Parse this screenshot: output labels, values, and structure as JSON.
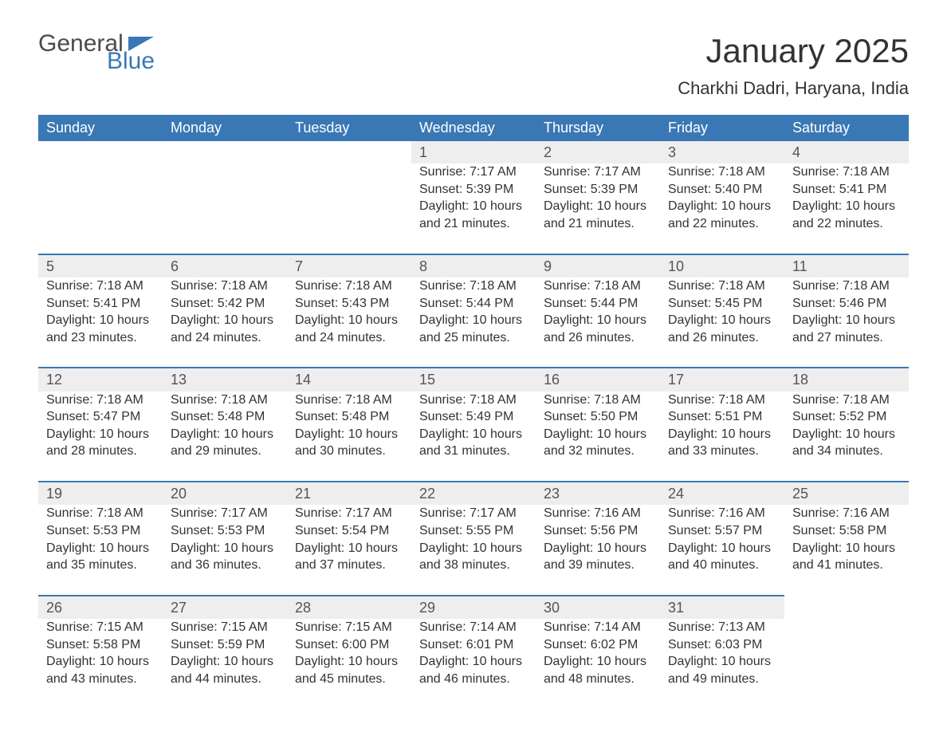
{
  "brand": {
    "word1": "General",
    "word2": "Blue",
    "accent_color": "#3a78b5"
  },
  "title": "January 2025",
  "location": "Charkhi Dadri, Haryana, India",
  "weekday_labels": [
    "Sunday",
    "Monday",
    "Tuesday",
    "Wednesday",
    "Thursday",
    "Friday",
    "Saturday"
  ],
  "colors": {
    "header_bg": "#3a78b5",
    "header_text": "#ffffff",
    "daynum_bg": "#eeeeee",
    "daynum_border": "#3a78b5",
    "body_text": "#333333",
    "background": "#ffffff"
  },
  "typography": {
    "title_fontsize": 42,
    "location_fontsize": 22,
    "weekday_fontsize": 18,
    "daynum_fontsize": 18,
    "cell_fontsize": 16
  },
  "labels": {
    "sunrise": "Sunrise",
    "sunset": "Sunset",
    "daylight": "Daylight"
  },
  "start_weekday_index": 3,
  "days": [
    {
      "n": 1,
      "sunrise": "7:17 AM",
      "sunset": "5:39 PM",
      "daylight": "10 hours and 21 minutes."
    },
    {
      "n": 2,
      "sunrise": "7:17 AM",
      "sunset": "5:39 PM",
      "daylight": "10 hours and 21 minutes."
    },
    {
      "n": 3,
      "sunrise": "7:18 AM",
      "sunset": "5:40 PM",
      "daylight": "10 hours and 22 minutes."
    },
    {
      "n": 4,
      "sunrise": "7:18 AM",
      "sunset": "5:41 PM",
      "daylight": "10 hours and 22 minutes."
    },
    {
      "n": 5,
      "sunrise": "7:18 AM",
      "sunset": "5:41 PM",
      "daylight": "10 hours and 23 minutes."
    },
    {
      "n": 6,
      "sunrise": "7:18 AM",
      "sunset": "5:42 PM",
      "daylight": "10 hours and 24 minutes."
    },
    {
      "n": 7,
      "sunrise": "7:18 AM",
      "sunset": "5:43 PM",
      "daylight": "10 hours and 24 minutes."
    },
    {
      "n": 8,
      "sunrise": "7:18 AM",
      "sunset": "5:44 PM",
      "daylight": "10 hours and 25 minutes."
    },
    {
      "n": 9,
      "sunrise": "7:18 AM",
      "sunset": "5:44 PM",
      "daylight": "10 hours and 26 minutes."
    },
    {
      "n": 10,
      "sunrise": "7:18 AM",
      "sunset": "5:45 PM",
      "daylight": "10 hours and 26 minutes."
    },
    {
      "n": 11,
      "sunrise": "7:18 AM",
      "sunset": "5:46 PM",
      "daylight": "10 hours and 27 minutes."
    },
    {
      "n": 12,
      "sunrise": "7:18 AM",
      "sunset": "5:47 PM",
      "daylight": "10 hours and 28 minutes."
    },
    {
      "n": 13,
      "sunrise": "7:18 AM",
      "sunset": "5:48 PM",
      "daylight": "10 hours and 29 minutes."
    },
    {
      "n": 14,
      "sunrise": "7:18 AM",
      "sunset": "5:48 PM",
      "daylight": "10 hours and 30 minutes."
    },
    {
      "n": 15,
      "sunrise": "7:18 AM",
      "sunset": "5:49 PM",
      "daylight": "10 hours and 31 minutes."
    },
    {
      "n": 16,
      "sunrise": "7:18 AM",
      "sunset": "5:50 PM",
      "daylight": "10 hours and 32 minutes."
    },
    {
      "n": 17,
      "sunrise": "7:18 AM",
      "sunset": "5:51 PM",
      "daylight": "10 hours and 33 minutes."
    },
    {
      "n": 18,
      "sunrise": "7:18 AM",
      "sunset": "5:52 PM",
      "daylight": "10 hours and 34 minutes."
    },
    {
      "n": 19,
      "sunrise": "7:18 AM",
      "sunset": "5:53 PM",
      "daylight": "10 hours and 35 minutes."
    },
    {
      "n": 20,
      "sunrise": "7:17 AM",
      "sunset": "5:53 PM",
      "daylight": "10 hours and 36 minutes."
    },
    {
      "n": 21,
      "sunrise": "7:17 AM",
      "sunset": "5:54 PM",
      "daylight": "10 hours and 37 minutes."
    },
    {
      "n": 22,
      "sunrise": "7:17 AM",
      "sunset": "5:55 PM",
      "daylight": "10 hours and 38 minutes."
    },
    {
      "n": 23,
      "sunrise": "7:16 AM",
      "sunset": "5:56 PM",
      "daylight": "10 hours and 39 minutes."
    },
    {
      "n": 24,
      "sunrise": "7:16 AM",
      "sunset": "5:57 PM",
      "daylight": "10 hours and 40 minutes."
    },
    {
      "n": 25,
      "sunrise": "7:16 AM",
      "sunset": "5:58 PM",
      "daylight": "10 hours and 41 minutes."
    },
    {
      "n": 26,
      "sunrise": "7:15 AM",
      "sunset": "5:58 PM",
      "daylight": "10 hours and 43 minutes."
    },
    {
      "n": 27,
      "sunrise": "7:15 AM",
      "sunset": "5:59 PM",
      "daylight": "10 hours and 44 minutes."
    },
    {
      "n": 28,
      "sunrise": "7:15 AM",
      "sunset": "6:00 PM",
      "daylight": "10 hours and 45 minutes."
    },
    {
      "n": 29,
      "sunrise": "7:14 AM",
      "sunset": "6:01 PM",
      "daylight": "10 hours and 46 minutes."
    },
    {
      "n": 30,
      "sunrise": "7:14 AM",
      "sunset": "6:02 PM",
      "daylight": "10 hours and 48 minutes."
    },
    {
      "n": 31,
      "sunrise": "7:13 AM",
      "sunset": "6:03 PM",
      "daylight": "10 hours and 49 minutes."
    }
  ]
}
